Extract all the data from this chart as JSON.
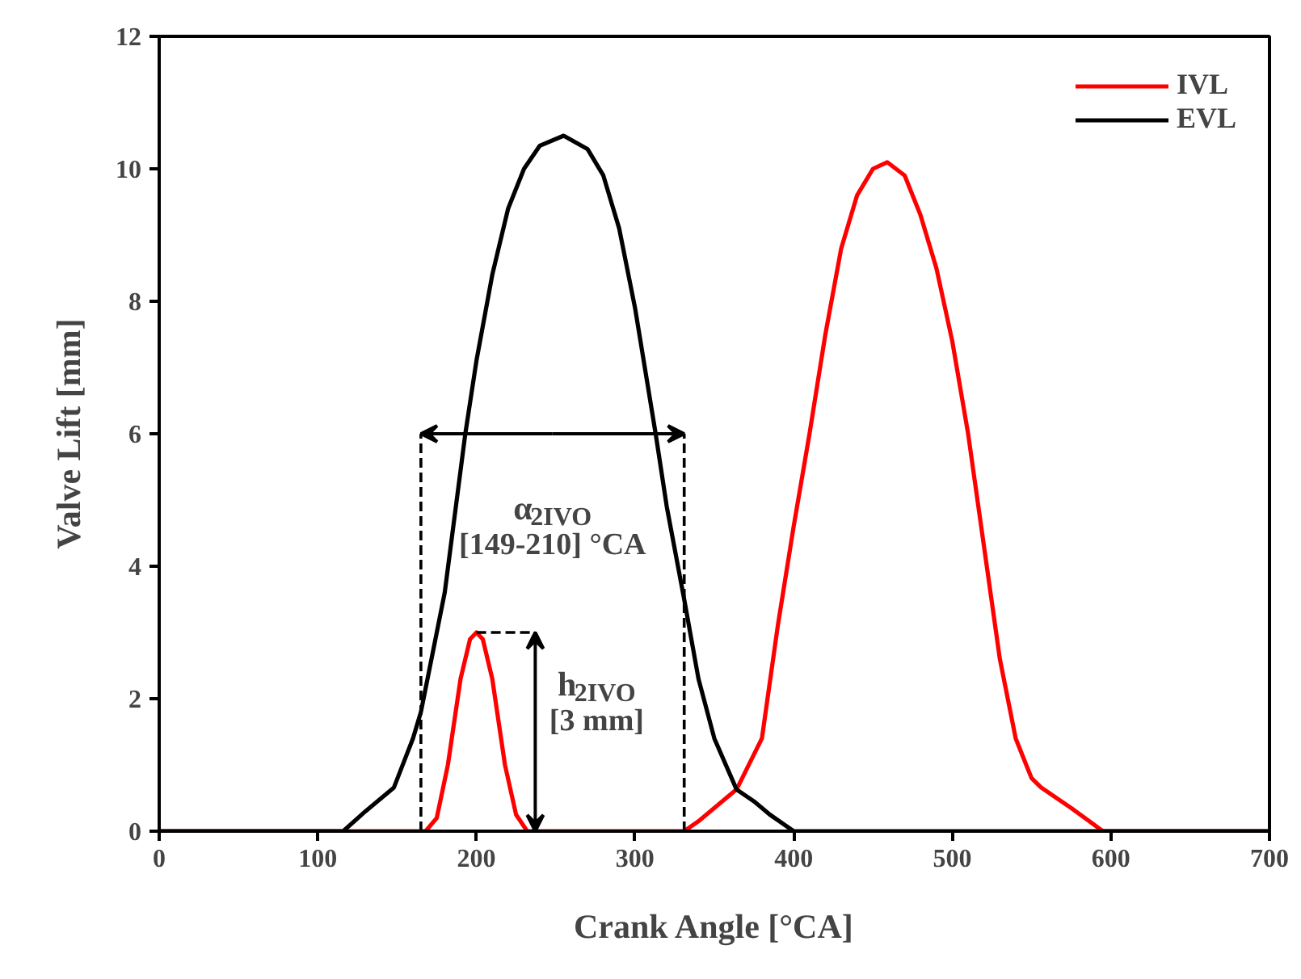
{
  "chart_data": {
    "type": "line",
    "xlabel": "Crank Angle [°CA]",
    "ylabel": "Valve Lift [mm]",
    "xlim": [
      0,
      700
    ],
    "ylim": [
      0,
      12
    ],
    "xticks": [
      0,
      100,
      200,
      300,
      400,
      500,
      600,
      700
    ],
    "yticks": [
      0,
      2,
      4,
      6,
      8,
      10,
      12
    ],
    "grid": false,
    "legend": "top right",
    "marker": "none",
    "line_style": "solid",
    "series": [
      {
        "name": "IVL",
        "color": "#ff0000",
        "x": [
          0,
          168,
          175,
          182,
          190,
          196,
          200,
          204,
          210,
          218,
          225,
          232,
          331,
          340,
          350,
          364,
          380,
          390,
          400,
          410,
          420,
          430,
          440,
          450,
          459,
          470,
          480,
          490,
          500,
          510,
          520,
          530,
          540,
          550,
          556,
          575,
          595,
          700
        ],
        "values": [
          0,
          0,
          0.2,
          1.0,
          2.3,
          2.9,
          3.0,
          2.9,
          2.3,
          1.0,
          0.25,
          0,
          0,
          0.15,
          0.35,
          0.63,
          1.4,
          3.1,
          4.6,
          6.0,
          7.5,
          8.8,
          9.6,
          10.0,
          10.1,
          9.9,
          9.3,
          8.5,
          7.4,
          6.0,
          4.3,
          2.6,
          1.4,
          0.8,
          0.66,
          0.35,
          0,
          0
        ]
      },
      {
        "name": "EVL",
        "color": "#000000",
        "x": [
          0,
          116,
          130,
          148,
          160,
          165,
          170,
          180,
          193,
          200,
          210,
          220,
          230,
          240,
          255,
          270,
          280,
          290,
          300,
          313,
          320,
          331,
          340,
          350,
          364,
          375,
          385,
          400,
          700
        ],
        "values": [
          0,
          0,
          0.3,
          0.66,
          1.4,
          1.8,
          2.4,
          3.6,
          6.0,
          7.1,
          8.4,
          9.4,
          10.0,
          10.35,
          10.5,
          10.3,
          9.9,
          9.1,
          7.9,
          6.0,
          4.9,
          3.5,
          2.3,
          1.4,
          0.63,
          0.45,
          0.25,
          0,
          0
        ]
      }
    ],
    "ref_lines": [
      {
        "axis": "x",
        "value": 165,
        "color": "#000000",
        "line_style": "dashed"
      },
      {
        "axis": "x",
        "value": 331,
        "color": "#000000",
        "line_style": "dashed"
      },
      {
        "axis": "y",
        "value": 3,
        "label": "h$_{2IVO}$\n[3 mm]",
        "color": "#000000",
        "line_style": "dashed"
      }
    ],
    "annotations": [
      "α$_{2IVO}$\n[149-210] °CA"
    ]
  }
}
